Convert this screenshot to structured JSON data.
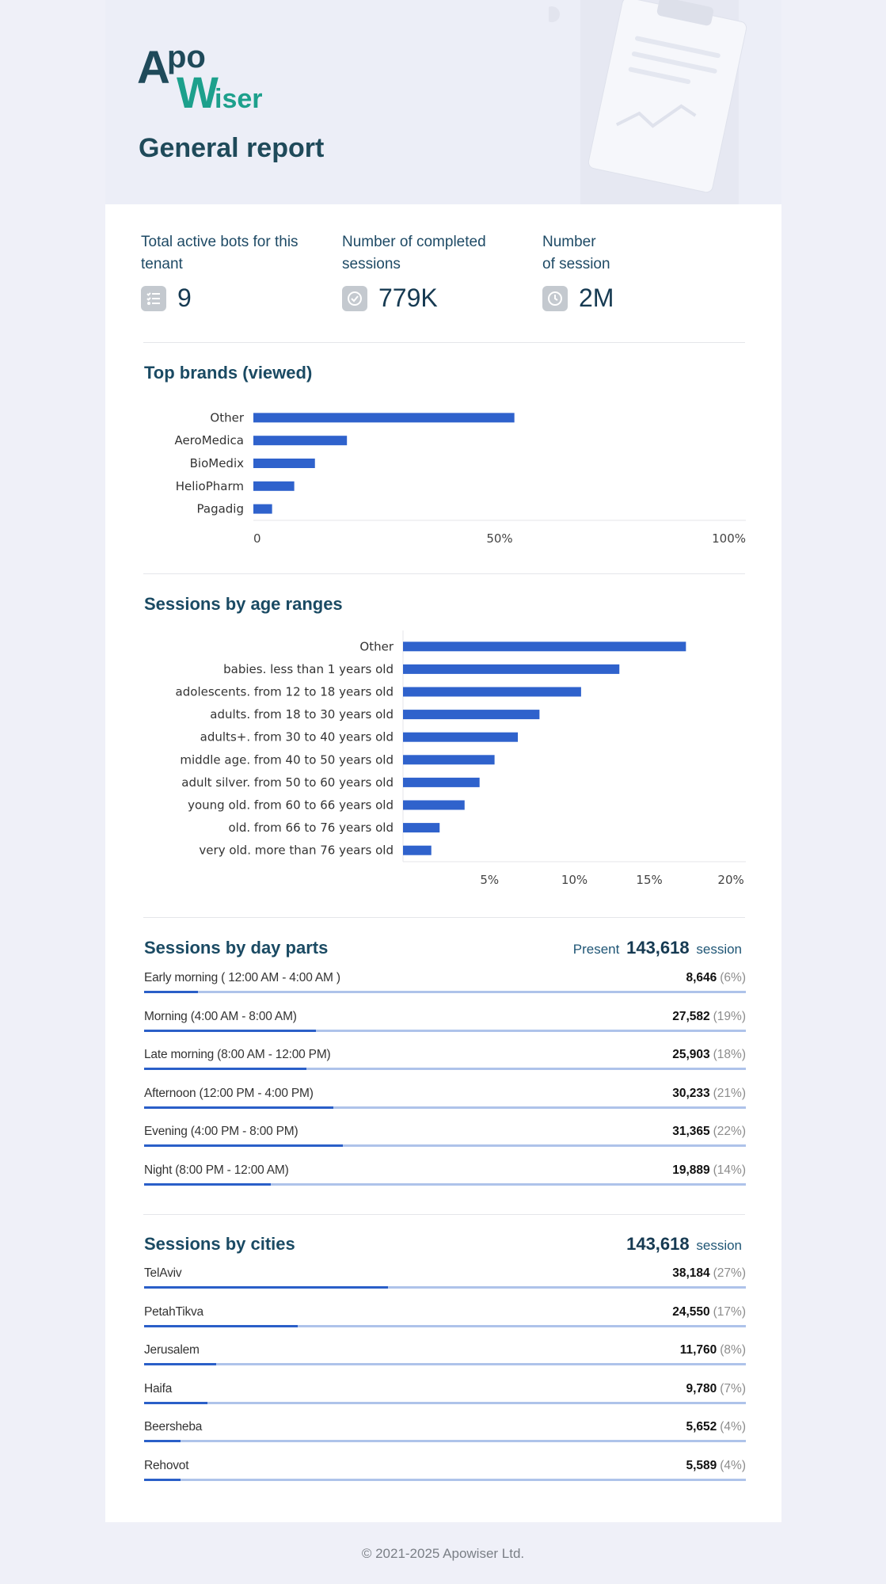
{
  "brand": {
    "logo_text_1": "Apo",
    "logo_text_2": "Wiser"
  },
  "report_title": "General report",
  "kpis": [
    {
      "label_line1": "Total active bots for this",
      "label_line2": "tenant",
      "value": "9",
      "icon": "list-icon"
    },
    {
      "label_line1": "Number of completed",
      "label_line2": "sessions",
      "value": "779K",
      "icon": "check-circle-icon"
    },
    {
      "label_line1": "Number",
      "label_line2": "of session",
      "value": "2M",
      "icon": "clock-icon"
    }
  ],
  "top_brands": {
    "title": "Top brands (viewed)",
    "chart_data": {
      "type": "bar",
      "orientation": "horizontal",
      "categories": [
        "Other",
        "AeroMedica",
        "BioMedix",
        "HelioPharm",
        "Pagadig"
      ],
      "values": [
        53,
        19,
        12.5,
        8.3,
        3.8
      ],
      "xlim": [
        0,
        100
      ],
      "ticks": [
        "0",
        "50%",
        "100%"
      ],
      "tick_values": [
        0,
        50,
        100
      ],
      "color": "#2f62cc"
    }
  },
  "age_ranges": {
    "title": "Sessions by age ranges",
    "chart_data": {
      "type": "bar",
      "orientation": "horizontal",
      "categories": [
        "Other",
        "babies. less than 1 years old",
        "adolescents. from 12 to 18 years old",
        "adults. from 18 to 30 years old",
        "adults+. from 30 to 40 years old",
        "middle age. from 40 to 50 years old",
        "adult silver. from 50 to 60 years old",
        "young old. from 60 to 66 years old",
        "old. from 66 to 76 years old",
        "very old. more than 76 years old"
      ],
      "values": [
        17,
        13,
        10.7,
        8.2,
        6.9,
        5.5,
        4.6,
        3.7,
        2.2,
        1.7
      ],
      "xlim": [
        0,
        20.6
      ],
      "ticks": [
        "5%",
        "10%",
        "15%",
        "20%"
      ],
      "tick_values": [
        5.2,
        10.3,
        14.8,
        19.7
      ],
      "color": "#2f62cc"
    }
  },
  "day_parts": {
    "title": "Sessions by day parts",
    "present_label": "Present",
    "present_value": "143,618",
    "present_unit": "session",
    "rows": [
      {
        "label": "Early morning ( 12:00 AM - 4:00 AM )",
        "value": "8,646",
        "pct": "(6%)",
        "fraction": 0.09
      },
      {
        "label": "Morning (4:00 AM - 8:00 AM)",
        "value": "27,582",
        "pct": "(19%)",
        "fraction": 0.285
      },
      {
        "label": "Late morning (8:00 AM - 12:00 PM)",
        "value": "25,903",
        "pct": "(18%)",
        "fraction": 0.27
      },
      {
        "label": "Afternoon (12:00 PM - 4:00 PM)",
        "value": "30,233",
        "pct": "(21%)",
        "fraction": 0.315
      },
      {
        "label": "Evening (4:00 PM - 8:00 PM)",
        "value": "31,365",
        "pct": "(22%)",
        "fraction": 0.33
      },
      {
        "label": "Night (8:00 PM - 12:00 AM)",
        "value": "19,889",
        "pct": "(14%)",
        "fraction": 0.21
      }
    ]
  },
  "cities": {
    "title": "Sessions by cities",
    "total_value": "143,618",
    "total_unit": "session",
    "rows": [
      {
        "label": "TelAviv",
        "value": "38,184",
        "pct": "(27%)",
        "fraction": 0.405
      },
      {
        "label": "PetahTikva",
        "value": "24,550",
        "pct": "(17%)",
        "fraction": 0.255
      },
      {
        "label": "Jerusalem",
        "value": "11,760",
        "pct": "(8%)",
        "fraction": 0.12
      },
      {
        "label": "Haifa",
        "value": "9,780",
        "pct": "(7%)",
        "fraction": 0.105
      },
      {
        "label": "Beersheba",
        "value": "5,652",
        "pct": "(4%)",
        "fraction": 0.06
      },
      {
        "label": "Rehovot",
        "value": "5,589",
        "pct": "(4%)",
        "fraction": 0.06
      }
    ]
  },
  "footer": "© 2021-2025 Apowiser Ltd."
}
